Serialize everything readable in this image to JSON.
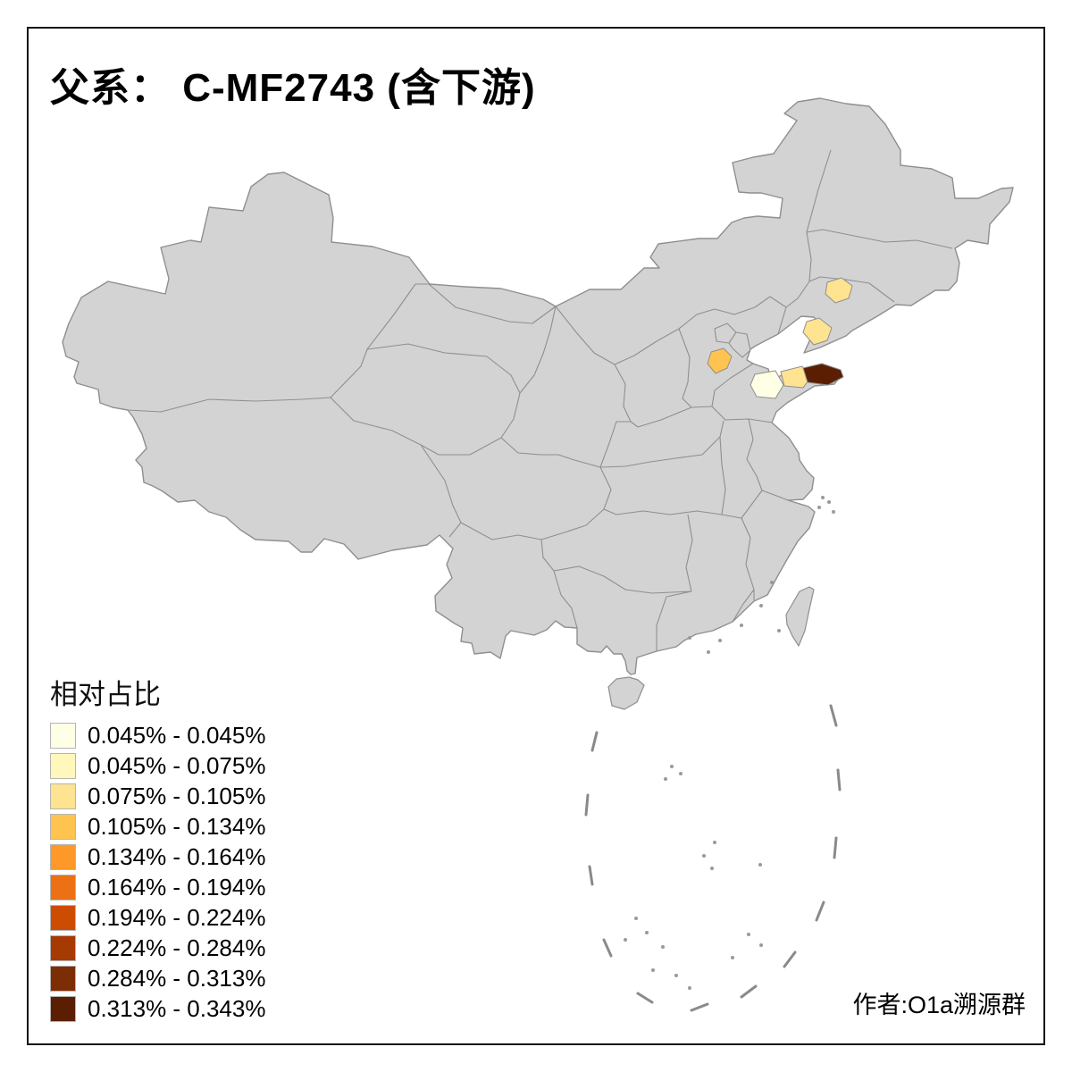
{
  "title": "父系： C-MF2743 (含下游)",
  "legend": {
    "title": "相对占比",
    "items": [
      {
        "label": "0.045% - 0.045%",
        "color": "#FFFFE5"
      },
      {
        "label": "0.045% - 0.075%",
        "color": "#FFF7BC"
      },
      {
        "label": "0.075% - 0.105%",
        "color": "#FEE391"
      },
      {
        "label": "0.105% - 0.134%",
        "color": "#FEC44F"
      },
      {
        "label": "0.134% - 0.164%",
        "color": "#FE9929"
      },
      {
        "label": "0.164% - 0.194%",
        "color": "#EC7014"
      },
      {
        "label": "0.194% - 0.224%",
        "color": "#CC4C02"
      },
      {
        "label": "0.224% - 0.284%",
        "color": "#A63A03"
      },
      {
        "label": "0.284% - 0.313%",
        "color": "#7C2D04"
      },
      {
        "label": "0.313% - 0.343%",
        "color": "#5C1E02"
      }
    ]
  },
  "attribution": "作者:O1a溯源群",
  "map": {
    "base_fill": "#D3D3D3",
    "border_color": "#8F8F8F",
    "background": "#FFFFFF",
    "highlighted_regions": [
      {
        "id": "region-1",
        "color": "#FEE391"
      },
      {
        "id": "region-2",
        "color": "#FEE391"
      },
      {
        "id": "region-3",
        "color": "#FEC44F"
      },
      {
        "id": "region-4",
        "color": "#FFFFE5"
      },
      {
        "id": "region-5",
        "color": "#FEE391"
      },
      {
        "id": "region-6",
        "color": "#5C1E02"
      }
    ]
  }
}
